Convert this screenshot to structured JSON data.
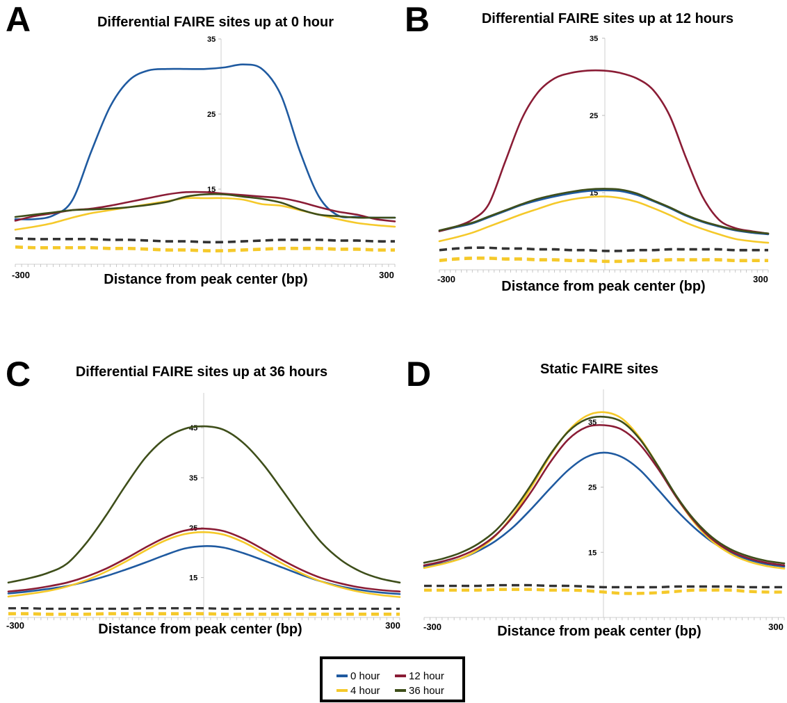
{
  "colors": {
    "0 hour": "#1f5aa0",
    "4 hour": "#f5c92a",
    "12 hour": "#8a1c35",
    "36 hour": "#3e4e1a",
    "dashed_dark": "#333333",
    "dashed_yellow": "#f5c92a"
  },
  "legend": {
    "items": [
      "0 hour",
      "12 hour",
      "4 hour",
      "36 hour"
    ]
  },
  "chart_data": [
    {
      "panel": "A",
      "type": "line",
      "title": "Differential FAIRE sites up at 0 hour",
      "xlabel": "Distance from peak center (bp)",
      "ylabel": "",
      "xlim": [
        -300,
        300
      ],
      "ylim": [
        5,
        35
      ],
      "x_tick_labels": [
        "-300",
        "300"
      ],
      "y_tick_labels": [
        "35",
        "25",
        "15"
      ],
      "x": [
        -300,
        -270,
        -240,
        -210,
        -180,
        -150,
        -120,
        -90,
        -60,
        -30,
        0,
        30,
        60,
        90,
        120,
        150,
        180,
        210,
        240,
        270,
        300
      ],
      "series": [
        {
          "name": "0 hour",
          "values": [
            11.0,
            11.0,
            11.5,
            13.5,
            20.0,
            26.0,
            29.5,
            30.8,
            31.0,
            31.0,
            31.0,
            31.2,
            31.6,
            31.0,
            27.5,
            20.0,
            14.0,
            11.5,
            11.3,
            11.2,
            11.2
          ]
        },
        {
          "name": "12 hour",
          "values": [
            10.8,
            11.4,
            11.8,
            12.2,
            12.4,
            12.8,
            13.3,
            13.8,
            14.3,
            14.6,
            14.6,
            14.4,
            14.2,
            14.0,
            13.8,
            13.3,
            12.6,
            12.0,
            11.6,
            11.0,
            10.7
          ]
        },
        {
          "name": "4 hour",
          "values": [
            9.6,
            10.0,
            10.5,
            11.2,
            11.8,
            12.2,
            12.6,
            13.0,
            13.4,
            13.8,
            13.8,
            13.8,
            13.6,
            13.0,
            12.8,
            12.2,
            11.6,
            11.0,
            10.5,
            10.2,
            10.0
          ]
        },
        {
          "name": "36 hour",
          "values": [
            11.3,
            11.6,
            11.9,
            12.2,
            12.3,
            12.4,
            12.6,
            12.9,
            13.3,
            14.0,
            14.3,
            14.3,
            14.0,
            13.7,
            13.2,
            12.3,
            11.6,
            11.4,
            11.2,
            11.2,
            11.2
          ]
        }
      ],
      "dashed_series": [
        {
          "name": "12 hour",
          "values": [
            8.5,
            8.4,
            8.4,
            8.4,
            8.4,
            8.3,
            8.3,
            8.2,
            8.1,
            8.1,
            8.0,
            8.0,
            8.1,
            8.2,
            8.3,
            8.3,
            8.3,
            8.2,
            8.2,
            8.1,
            8.1
          ]
        },
        {
          "name": "36 hour",
          "values": [
            8.4,
            8.3,
            8.3,
            8.3,
            8.3,
            8.2,
            8.2,
            8.1,
            8.0,
            8.0,
            7.9,
            7.9,
            8.0,
            8.1,
            8.2,
            8.2,
            8.2,
            8.1,
            8.1,
            8.0,
            8.0
          ]
        },
        {
          "name": "4 hour",
          "values": [
            7.4,
            7.3,
            7.3,
            7.3,
            7.3,
            7.2,
            7.2,
            7.1,
            7.0,
            7.0,
            6.9,
            6.9,
            7.0,
            7.1,
            7.2,
            7.2,
            7.2,
            7.1,
            7.1,
            7.0,
            7.0
          ]
        },
        {
          "name": "0 hour",
          "values": [
            7.2,
            7.1,
            7.1,
            7.1,
            7.1,
            7.0,
            7.0,
            6.9,
            6.8,
            6.8,
            6.7,
            6.7,
            6.8,
            6.9,
            7.0,
            7.0,
            7.0,
            6.9,
            6.9,
            6.8,
            6.8
          ]
        }
      ]
    },
    {
      "panel": "B",
      "type": "line",
      "title": "Differential FAIRE sites up at 12 hours",
      "xlabel": "Distance from peak center (bp)",
      "ylabel": "",
      "xlim": [
        -300,
        300
      ],
      "ylim": [
        5,
        35
      ],
      "x_tick_labels": [
        "-300",
        "300"
      ],
      "y_tick_labels": [
        "35",
        "25",
        "15"
      ],
      "x": [
        -300,
        -270,
        -240,
        -210,
        -180,
        -150,
        -120,
        -90,
        -60,
        -30,
        0,
        30,
        60,
        90,
        120,
        150,
        180,
        210,
        240,
        270,
        300
      ],
      "series": [
        {
          "name": "0 hour",
          "values": [
            10.0,
            10.5,
            11.0,
            11.8,
            12.6,
            13.4,
            14.0,
            14.5,
            14.9,
            15.2,
            15.3,
            15.2,
            14.7,
            13.9,
            13.0,
            12.0,
            11.2,
            10.6,
            10.1,
            9.8,
            9.6
          ]
        },
        {
          "name": "12 hour",
          "values": [
            10.0,
            10.6,
            11.5,
            13.5,
            19.0,
            24.5,
            28.0,
            29.8,
            30.5,
            30.8,
            30.8,
            30.5,
            29.8,
            28.3,
            25.0,
            19.5,
            14.5,
            11.5,
            10.4,
            10.0,
            9.7
          ]
        },
        {
          "name": "4 hour",
          "values": [
            8.7,
            9.2,
            9.8,
            10.6,
            11.4,
            12.2,
            12.9,
            13.6,
            14.1,
            14.4,
            14.5,
            14.3,
            13.8,
            13.0,
            12.1,
            11.1,
            10.3,
            9.6,
            9.0,
            8.7,
            8.5
          ]
        },
        {
          "name": "36 hour",
          "values": [
            10.1,
            10.6,
            11.1,
            11.9,
            12.7,
            13.5,
            14.2,
            14.7,
            15.1,
            15.4,
            15.5,
            15.4,
            14.9,
            14.0,
            13.1,
            12.1,
            11.3,
            10.7,
            10.2,
            9.9,
            9.7
          ]
        }
      ],
      "dashed_series": [
        {
          "name": "12 hour",
          "values": [
            7.6,
            7.8,
            7.9,
            7.9,
            7.8,
            7.8,
            7.7,
            7.7,
            7.6,
            7.6,
            7.5,
            7.5,
            7.6,
            7.6,
            7.7,
            7.7,
            7.7,
            7.7,
            7.6,
            7.6,
            7.6
          ]
        },
        {
          "name": "36 hour",
          "values": [
            7.5,
            7.7,
            7.8,
            7.8,
            7.7,
            7.7,
            7.6,
            7.6,
            7.5,
            7.5,
            7.4,
            7.4,
            7.5,
            7.5,
            7.6,
            7.6,
            7.6,
            7.6,
            7.5,
            7.5,
            7.5
          ]
        },
        {
          "name": "4 hour",
          "values": [
            6.3,
            6.5,
            6.6,
            6.6,
            6.5,
            6.5,
            6.4,
            6.4,
            6.3,
            6.3,
            6.2,
            6.2,
            6.3,
            6.3,
            6.4,
            6.4,
            6.4,
            6.4,
            6.3,
            6.3,
            6.3
          ]
        },
        {
          "name": "0 hour",
          "values": [
            6.1,
            6.3,
            6.4,
            6.4,
            6.3,
            6.3,
            6.2,
            6.2,
            6.1,
            6.1,
            6.0,
            6.0,
            6.1,
            6.1,
            6.2,
            6.2,
            6.2,
            6.2,
            6.1,
            6.1,
            6.1
          ]
        }
      ]
    },
    {
      "panel": "C",
      "type": "line",
      "title": "Differential FAIRE sites up at 36 hours",
      "xlabel": "Distance from peak center (bp)",
      "ylabel": "",
      "xlim": [
        -300,
        300
      ],
      "ylim": [
        7,
        52
      ],
      "x_tick_labels": [
        "-300",
        "300"
      ],
      "y_tick_labels": [
        "45",
        "35",
        "25",
        "15"
      ],
      "x": [
        -300,
        -270,
        -240,
        -210,
        -180,
        -150,
        -120,
        -90,
        -60,
        -30,
        0,
        30,
        60,
        90,
        120,
        150,
        180,
        210,
        240,
        270,
        300
      ],
      "series": [
        {
          "name": "0 hour",
          "values": [
            11.8,
            12.2,
            12.7,
            13.3,
            14.2,
            15.3,
            16.6,
            18.0,
            19.5,
            20.8,
            21.3,
            21.0,
            19.9,
            18.5,
            17.0,
            15.5,
            14.2,
            13.2,
            12.5,
            12.0,
            11.7
          ]
        },
        {
          "name": "12 hour",
          "values": [
            12.2,
            12.6,
            13.2,
            14.0,
            15.2,
            16.8,
            18.8,
            21.0,
            23.0,
            24.4,
            24.8,
            24.3,
            22.8,
            20.7,
            18.5,
            16.5,
            14.9,
            13.8,
            13.0,
            12.5,
            12.2
          ]
        },
        {
          "name": "4 hour",
          "values": [
            11.2,
            11.7,
            12.3,
            13.2,
            14.5,
            16.2,
            18.2,
            20.4,
            22.4,
            23.7,
            24.1,
            23.6,
            22.1,
            20.0,
            17.8,
            15.8,
            14.2,
            13.0,
            12.1,
            11.5,
            11.1
          ]
        },
        {
          "name": "36 hour",
          "values": [
            14.0,
            14.8,
            15.9,
            17.8,
            22.0,
            27.5,
            33.5,
            39.0,
            42.8,
            44.8,
            45.3,
            44.6,
            42.0,
            37.8,
            32.5,
            27.0,
            22.0,
            18.5,
            16.2,
            14.8,
            14.0
          ]
        }
      ],
      "dashed_series": [
        {
          "name": "12 hour",
          "values": [
            8.9,
            8.9,
            8.8,
            8.8,
            8.8,
            8.8,
            8.8,
            8.9,
            8.9,
            8.9,
            8.9,
            8.8,
            8.8,
            8.8,
            8.8,
            8.8,
            8.8,
            8.8,
            8.8,
            8.8,
            8.8
          ]
        },
        {
          "name": "36 hour",
          "values": [
            8.8,
            8.8,
            8.7,
            8.7,
            8.7,
            8.7,
            8.7,
            8.8,
            8.8,
            8.8,
            8.8,
            8.7,
            8.7,
            8.7,
            8.7,
            8.7,
            8.7,
            8.7,
            8.7,
            8.7,
            8.7
          ]
        },
        {
          "name": "4 hour",
          "values": [
            7.9,
            7.9,
            7.8,
            7.8,
            7.8,
            7.9,
            7.9,
            7.9,
            7.9,
            7.9,
            7.9,
            7.8,
            7.8,
            7.8,
            7.8,
            7.8,
            7.8,
            7.8,
            7.8,
            7.8,
            7.8
          ]
        },
        {
          "name": "0 hour",
          "values": [
            7.6,
            7.6,
            7.5,
            7.5,
            7.5,
            7.6,
            7.6,
            7.6,
            7.6,
            7.6,
            7.6,
            7.5,
            7.5,
            7.5,
            7.5,
            7.5,
            7.5,
            7.5,
            7.5,
            7.5,
            7.5
          ]
        }
      ]
    },
    {
      "panel": "D",
      "type": "line",
      "title": "Static FAIRE sites",
      "xlabel": "Distance from peak center (bp)",
      "ylabel": "",
      "xlim": [
        -300,
        300
      ],
      "ylim": [
        5,
        40
      ],
      "x_tick_labels": [
        "-300",
        "300"
      ],
      "y_tick_labels": [
        "35",
        "25",
        "15"
      ],
      "x": [
        -300,
        -270,
        -240,
        -210,
        -180,
        -150,
        -120,
        -90,
        -60,
        -30,
        0,
        30,
        60,
        90,
        120,
        150,
        180,
        210,
        240,
        270,
        300
      ],
      "series": [
        {
          "name": "0 hour",
          "values": [
            12.8,
            13.3,
            14.0,
            15.2,
            16.8,
            19.0,
            21.8,
            24.8,
            27.6,
            29.6,
            30.3,
            29.6,
            27.6,
            24.6,
            21.5,
            18.8,
            16.6,
            15.0,
            13.9,
            13.2,
            12.8
          ]
        },
        {
          "name": "12 hour",
          "values": [
            13.0,
            13.6,
            14.4,
            15.7,
            17.7,
            20.7,
            24.5,
            28.8,
            32.3,
            34.2,
            34.5,
            33.8,
            31.5,
            27.8,
            23.5,
            19.8,
            17.0,
            15.2,
            14.1,
            13.4,
            13.0
          ]
        },
        {
          "name": "4 hour",
          "values": [
            12.6,
            13.2,
            14.0,
            15.4,
            17.6,
            21.0,
            25.2,
            29.8,
            33.6,
            35.9,
            36.5,
            35.5,
            32.5,
            28.2,
            23.5,
            19.6,
            16.7,
            14.8,
            13.6,
            12.9,
            12.5
          ]
        },
        {
          "name": "36 hour",
          "values": [
            13.4,
            14.0,
            14.9,
            16.3,
            18.4,
            21.6,
            25.6,
            30.0,
            33.5,
            35.4,
            35.8,
            35.0,
            32.3,
            28.2,
            23.7,
            20.0,
            17.3,
            15.5,
            14.4,
            13.7,
            13.3
          ]
        }
      ],
      "dashed_series": [
        {
          "name": "12 hour",
          "values": [
            9.9,
            9.9,
            9.9,
            9.9,
            10.0,
            10.0,
            10.0,
            9.9,
            9.9,
            9.8,
            9.7,
            9.7,
            9.7,
            9.7,
            9.8,
            9.8,
            9.8,
            9.8,
            9.7,
            9.7,
            9.7
          ]
        },
        {
          "name": "36 hour",
          "values": [
            9.8,
            9.8,
            9.8,
            9.8,
            9.9,
            9.9,
            9.9,
            9.8,
            9.8,
            9.7,
            9.6,
            9.6,
            9.6,
            9.6,
            9.7,
            9.7,
            9.7,
            9.7,
            9.6,
            9.6,
            9.6
          ]
        },
        {
          "name": "4 hour",
          "values": [
            9.3,
            9.3,
            9.3,
            9.3,
            9.4,
            9.4,
            9.4,
            9.3,
            9.3,
            9.2,
            9.0,
            8.8,
            8.8,
            8.9,
            9.1,
            9.3,
            9.3,
            9.3,
            9.1,
            9.0,
            9.0
          ]
        },
        {
          "name": "0 hour",
          "values": [
            9.1,
            9.1,
            9.1,
            9.1,
            9.2,
            9.2,
            9.2,
            9.1,
            9.1,
            9.0,
            8.8,
            8.6,
            8.6,
            8.7,
            8.9,
            9.1,
            9.1,
            9.1,
            8.9,
            8.8,
            8.8
          ]
        }
      ]
    }
  ]
}
